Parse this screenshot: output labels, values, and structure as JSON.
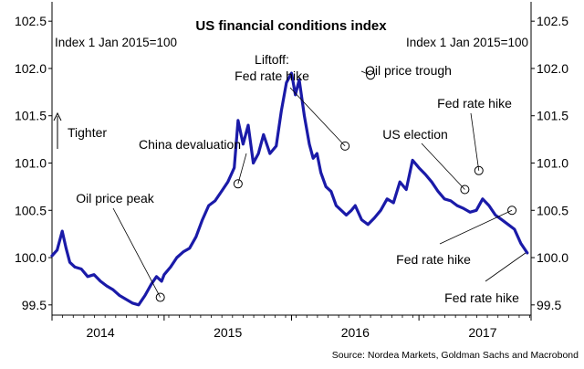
{
  "chart_data": {
    "type": "line",
    "title": "US financial conditions index",
    "subtitle_left": "Index 1 Jan 2015=100",
    "subtitle_right": "Index 1 Jan 2015=100",
    "direction_label": "Tighter",
    "source": "Source: Nordea Markets, Goldman Sachs and Macrobond",
    "ylim": [
      99.45,
      102.55
    ],
    "yticks": [
      "102.5",
      "102.0",
      "101.5",
      "101.0",
      "100.5",
      "100.0",
      "99.5"
    ],
    "ytick_values": [
      102.5,
      102.0,
      101.5,
      101.0,
      100.5,
      100.0,
      99.5
    ],
    "xlim": [
      2013.62,
      2017.38
    ],
    "xticks": [
      "2014",
      "2015",
      "2016",
      "2017"
    ],
    "xtick_values": [
      2014.0,
      2015.0,
      2016.0,
      2017.0
    ],
    "year_boundaries": [
      2013.62,
      2014.5,
      2015.5,
      2016.5,
      2017.38
    ],
    "series": [
      {
        "name": "US financial conditions index",
        "color": "#1a1aa8",
        "x": [
          2013.62,
          2013.66,
          2013.7,
          2013.73,
          2013.76,
          2013.8,
          2013.85,
          2013.9,
          2013.95,
          2014.0,
          2014.05,
          2014.1,
          2014.15,
          2014.2,
          2014.25,
          2014.3,
          2014.35,
          2014.4,
          2014.44,
          2014.48,
          2014.5,
          2014.55,
          2014.6,
          2014.65,
          2014.7,
          2014.75,
          2014.8,
          2014.85,
          2014.9,
          2014.95,
          2015.0,
          2015.05,
          2015.08,
          2015.12,
          2015.16,
          2015.2,
          2015.24,
          2015.28,
          2015.33,
          2015.38,
          2015.42,
          2015.46,
          2015.5,
          2015.53,
          2015.56,
          2015.6,
          2015.64,
          2015.67,
          2015.7,
          2015.73,
          2015.77,
          2015.81,
          2015.85,
          2015.89,
          2015.93,
          2015.97,
          2016.0,
          2016.05,
          2016.1,
          2016.15,
          2016.2,
          2016.25,
          2016.3,
          2016.35,
          2016.4,
          2016.45,
          2016.5,
          2016.55,
          2016.6,
          2016.65,
          2016.7,
          2016.75,
          2016.8,
          2016.85,
          2016.9,
          2016.95,
          2017.0,
          2017.05,
          2017.1,
          2017.15,
          2017.2,
          2017.25,
          2017.3,
          2017.35
        ],
        "values": [
          100.02,
          100.08,
          100.28,
          100.1,
          99.95,
          99.9,
          99.88,
          99.8,
          99.82,
          99.75,
          99.7,
          99.66,
          99.6,
          99.56,
          99.52,
          99.5,
          99.6,
          99.72,
          99.8,
          99.75,
          99.82,
          99.9,
          100.0,
          100.06,
          100.1,
          100.22,
          100.4,
          100.55,
          100.6,
          100.7,
          100.8,
          100.95,
          101.45,
          101.2,
          101.4,
          101.0,
          101.1,
          101.3,
          101.1,
          101.18,
          101.55,
          101.85,
          101.95,
          101.72,
          101.88,
          101.5,
          101.2,
          101.05,
          101.1,
          100.9,
          100.75,
          100.7,
          100.55,
          100.5,
          100.45,
          100.5,
          100.55,
          100.4,
          100.35,
          100.42,
          100.5,
          100.62,
          100.58,
          100.8,
          100.72,
          101.03,
          100.95,
          100.88,
          100.8,
          100.7,
          100.62,
          100.6,
          100.55,
          100.52,
          100.48,
          100.5,
          100.62,
          100.55,
          100.45,
          100.4,
          100.35,
          100.3,
          100.15,
          100.05
        ]
      }
    ],
    "annotations": [
      {
        "text": "Oil price peak",
        "x": 2014.47,
        "y": 99.58
      },
      {
        "text": "China devaluation",
        "x": 2015.08,
        "y": 100.78
      },
      {
        "text_lines": [
          "Liftoff:",
          "Fed rate hike"
        ],
        "x": 2015.92,
        "y": 101.18
      },
      {
        "text": "Oil price trough",
        "x": 2016.12,
        "y": 101.93
      },
      {
        "text": "US election",
        "x": 2016.86,
        "y": 100.72
      },
      {
        "text": "Fed rate hike",
        "x": 2016.97,
        "y": 100.92
      },
      {
        "text": "Fed rate hike",
        "x": 2017.23,
        "y": 100.5
      },
      {
        "text": "Fed rate hike",
        "x": 2017.53,
        "y": 100.05
      }
    ]
  }
}
